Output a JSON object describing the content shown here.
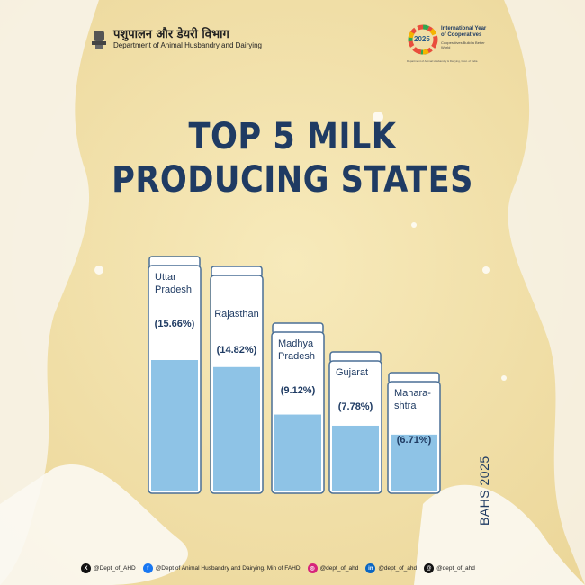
{
  "header": {
    "dept_hindi": "पशुपालन और डेयरी विभाग",
    "dept_english": "Department of Animal Husbandry and Dairying"
  },
  "coop_logo": {
    "year": "2025",
    "title": "International Year of Cooperatives",
    "tagline": "Cooperatives Build a Better World",
    "subline": "Department of Animal Husbandry & Dairying, Govt. of India"
  },
  "chart_data": {
    "type": "bar",
    "title": "TOP 5 MILK PRODUCING STATES",
    "categories": [
      "Uttar Pradesh",
      "Rajasthan",
      "Madhya Pradesh",
      "Gujarat",
      "Maharashtra"
    ],
    "category_labels": [
      [
        "Uttar",
        "Pradesh"
      ],
      [
        "Rajasthan"
      ],
      [
        "Madhya",
        "Pradesh"
      ],
      [
        "Gujarat"
      ],
      [
        "Mahara-",
        "shtra"
      ]
    ],
    "values": [
      15.66,
      14.82,
      9.12,
      7.78,
      6.71
    ],
    "value_labels": [
      "(15.66%)",
      "(14.82%)",
      "(9.12%)",
      "(7.78%)",
      "(6.71%)"
    ],
    "unit": "%",
    "legend": "none",
    "grid": false,
    "source": "BAHS 2025"
  },
  "colors": {
    "background": "#f3e3ad",
    "title": "#1f3b63",
    "milk_fill": "#8ec3e6",
    "glass": "#ffffff",
    "glass_outline": "#4a6f96"
  },
  "footer": {
    "socials": [
      {
        "icon": "x-icon",
        "handle": "@Dept_of_AHD",
        "color": "#111111",
        "glyph": "X"
      },
      {
        "icon": "facebook-icon",
        "handle": "@Dept of Animal Husbandry and Dairying, Min of FAHD",
        "color": "#1877f2",
        "glyph": "f"
      },
      {
        "icon": "instagram-icon",
        "handle": "@dept_of_ahd",
        "color": "#d6247a",
        "glyph": "◎"
      },
      {
        "icon": "linkedin-icon",
        "handle": "@dept_of_ahd",
        "color": "#0a66c2",
        "glyph": "in"
      },
      {
        "icon": "threads-icon",
        "handle": "@dept_of_ahd",
        "color": "#111111",
        "glyph": "@"
      }
    ]
  }
}
